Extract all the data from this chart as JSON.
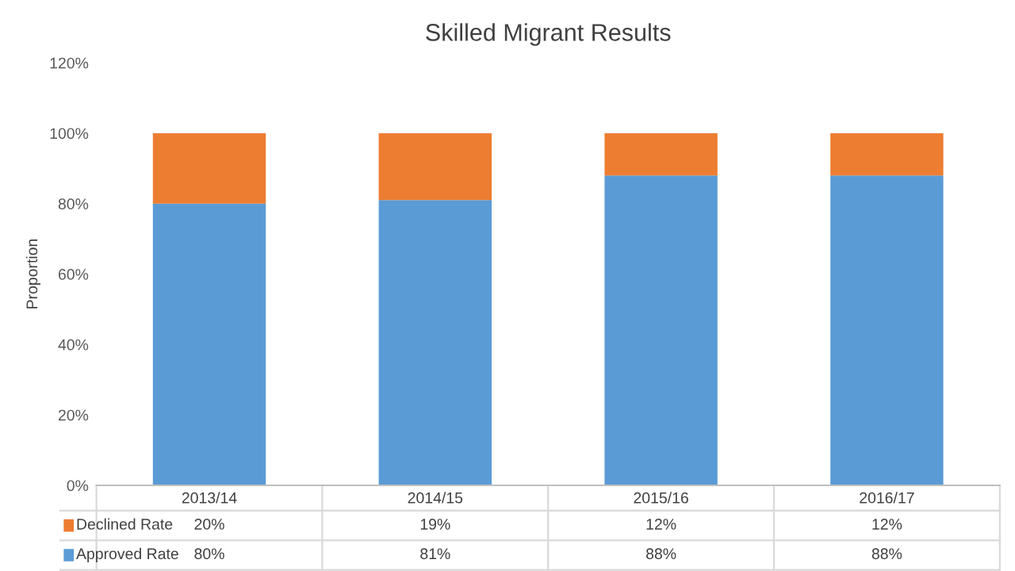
{
  "chart_data": {
    "type": "bar",
    "title": "Skilled Migrant Results",
    "ylabel": "Proportion",
    "stacked": true,
    "categories": [
      "2013/14",
      "2014/15",
      "2015/16",
      "2016/17"
    ],
    "series": [
      {
        "name": "Approved Rate",
        "color": "#5b9bd5",
        "values": [
          80,
          81,
          88,
          88
        ],
        "value_labels": [
          "80%",
          "81%",
          "88%",
          "88%"
        ]
      },
      {
        "name": "Declined Rate",
        "color": "#ed7d31",
        "values": [
          20,
          19,
          12,
          12
        ],
        "value_labels": [
          "20%",
          "19%",
          "12%",
          "12%"
        ]
      }
    ],
    "ylim": [
      0,
      120
    ],
    "yticks": [
      {
        "value": 0,
        "label": "0%"
      },
      {
        "value": 20,
        "label": "20%"
      },
      {
        "value": 40,
        "label": "40%"
      },
      {
        "value": 60,
        "label": "60%"
      },
      {
        "value": 80,
        "label": "80%"
      },
      {
        "value": 100,
        "label": "100%"
      },
      {
        "value": 120,
        "label": "120%"
      }
    ],
    "grid": false,
    "legend": "bottom"
  }
}
